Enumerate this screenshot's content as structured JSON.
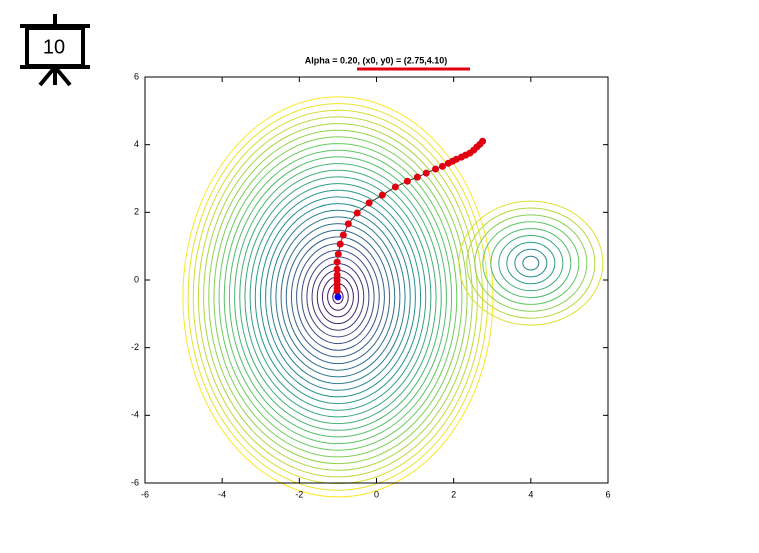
{
  "slide_number": "10",
  "chart_data": {
    "type": "line",
    "title": "Alpha = 0.20, (x0, y0) = (2.75,4.10)",
    "x": [
      2.75,
      2.68,
      2.6,
      2.52,
      2.42,
      2.31,
      2.2,
      2.07,
      1.97,
      1.86,
      1.71,
      1.53,
      1.29,
      1.06,
      0.8,
      0.49,
      0.15,
      -0.19,
      -0.5,
      -0.73,
      -0.86,
      -0.94,
      -0.99,
      -1.02,
      -1.02,
      -1.02,
      -1.02,
      -1.02,
      -1.02,
      -1.02
    ],
    "values": [
      4.1,
      4.01,
      3.93,
      3.84,
      3.75,
      3.69,
      3.63,
      3.57,
      3.51,
      3.45,
      3.36,
      3.28,
      3.16,
      3.04,
      2.92,
      2.75,
      2.51,
      2.28,
      1.98,
      1.66,
      1.33,
      1.06,
      0.77,
      0.53,
      0.32,
      0.15,
      0.0,
      -0.12,
      -0.24,
      -0.33
    ],
    "color": "#e00010",
    "end_point": {
      "x": -1,
      "y": -0.5,
      "color": "#0000ff"
    },
    "xlim": [
      -6,
      6
    ],
    "ylim": [
      -6,
      6
    ],
    "xticks": [
      -6,
      -4,
      -2,
      0,
      2,
      4,
      6
    ],
    "yticks": [
      -6,
      -4,
      -2,
      0,
      2,
      4,
      6
    ]
  }
}
